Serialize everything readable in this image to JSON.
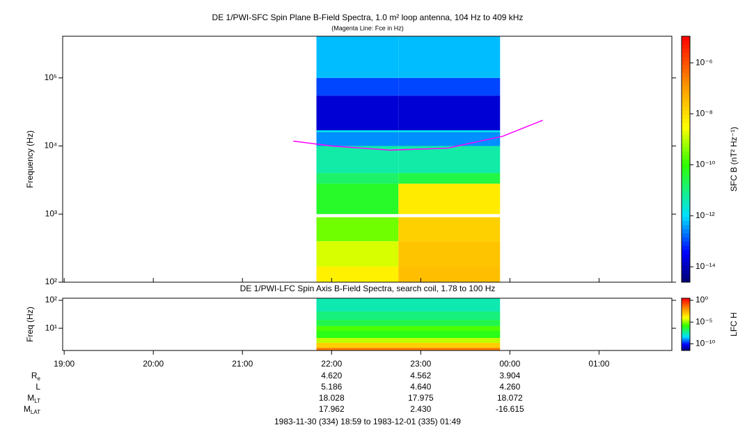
{
  "chart_data": [
    {
      "type": "spectrogram",
      "title": "DE 1/PWI-SFC  Spin Plane B-Field Spectra, 1.0 m² loop antenna, 104 Hz to 409 kHz",
      "subtitle": "(Magenta Line: Fce in Hz)",
      "ylabel": "Frequency (Hz)",
      "log_y": true,
      "xlim": [
        18.983,
        25.817
      ],
      "ylim": [
        100,
        409000
      ],
      "yticks": [
        {
          "value": 100,
          "label": "10²"
        },
        {
          "value": 1000,
          "label": "10³"
        },
        {
          "value": 10000,
          "label": "10⁴"
        },
        {
          "value": 100000,
          "label": "10⁵"
        }
      ],
      "xbins": [
        21.83,
        22.75,
        23.89
      ],
      "ybins": [
        100,
        170,
        400,
        900,
        1000,
        2800,
        4000,
        10000,
        16000,
        17000,
        55000,
        100000,
        409000
      ],
      "z": [
        [
          5e-09,
          3e-08
        ],
        [
          1.6e-09,
          2.5e-08
        ],
        [
          3e-10,
          1.6e-08
        ],
        [
          null,
          null
        ],
        [
          5e-11,
          6e-09
        ],
        [
          1.6e-11,
          3e-11
        ],
        [
          5e-12,
          5e-12
        ],
        [
          3e-13,
          3e-13
        ],
        [
          1.5e-12,
          1.5e-12
        ],
        [
          1.6e-14,
          1.6e-14
        ],
        [
          1e-13,
          1e-13
        ],
        [
          6e-13,
          6e-13
        ]
      ],
      "clabel": "SFC B (nT² Hz⁻¹)",
      "clim": [
        2.5e-15,
        1.1e-05
      ],
      "cticks": [
        {
          "value": 1e-06,
          "label": "10⁻⁶"
        },
        {
          "value": 1e-08,
          "label": "10⁻⁸"
        },
        {
          "value": 1e-10,
          "label": "10⁻¹⁰"
        },
        {
          "value": 1e-12,
          "label": "10⁻¹²"
        },
        {
          "value": 1e-14,
          "label": "10⁻¹⁴"
        }
      ],
      "series": [
        {
          "color": "#ff00ff",
          "x": [
            21.57,
            22.0,
            22.66,
            23.3,
            23.92,
            24.37
          ],
          "values": [
            11800,
            10000,
            8700,
            9300,
            13900,
            23900
          ]
        }
      ]
    },
    {
      "type": "spectrogram",
      "title": "DE 1/PWI-LFC  Spin Axis B-Field Spectra, search coil, 1.78 to 100 Hz",
      "ylabel": "Freq (Hz)",
      "log_y": true,
      "xlim": [
        18.983,
        25.817
      ],
      "xticks": [
        {
          "value": 19,
          "label": "19:00"
        },
        {
          "value": 20,
          "label": "20:00"
        },
        {
          "value": 21,
          "label": "21:00"
        },
        {
          "value": 22,
          "label": "22:00"
        },
        {
          "value": 23,
          "label": "23:00"
        },
        {
          "value": 24,
          "label": "00:00"
        },
        {
          "value": 25,
          "label": "01:00"
        }
      ],
      "ylim": [
        1.6,
        119
      ],
      "yticks": [
        {
          "value": 10,
          "label": "10¹"
        },
        {
          "value": 100,
          "label": "10²"
        }
      ],
      "xbins": [
        21.83,
        23.89
      ],
      "ybins": [
        1.6,
        2.0,
        3.0,
        4.5,
        8,
        12,
        20,
        40,
        119
      ],
      "z": [
        [
          0.03
        ],
        [
          0.001
        ],
        [
          3e-05
        ],
        [
          1e-06
        ],
        [
          3e-06
        ],
        [
          3e-07
        ],
        [
          1e-07
        ],
        [
          3e-08
        ]
      ],
      "clabel": "LFC H",
      "clim": [
        3e-12,
        3
      ],
      "cticks": [
        {
          "value": 1,
          "label": "10⁰"
        },
        {
          "value": 1e-05,
          "label": "10⁻⁵"
        },
        {
          "value": 1e-10,
          "label": "10⁻¹⁰"
        }
      ]
    }
  ],
  "ephemeris": {
    "rows": [
      {
        "label": "R",
        "sub": "e",
        "values": [
          "4.620",
          "4.562",
          "3.904"
        ]
      },
      {
        "label": "L",
        "values": [
          "5.186",
          "4.640",
          "4.260"
        ]
      },
      {
        "label": "M",
        "sub": "LT",
        "values": [
          "18.028",
          "17.975",
          "18.072"
        ]
      },
      {
        "label": "M",
        "sub": "LAT",
        "values": [
          "17.962",
          "2.430",
          "-16.615"
        ]
      }
    ]
  },
  "footer": "1983-11-30 (334) 18:59 to 1983-12-01 (335) 01:49"
}
